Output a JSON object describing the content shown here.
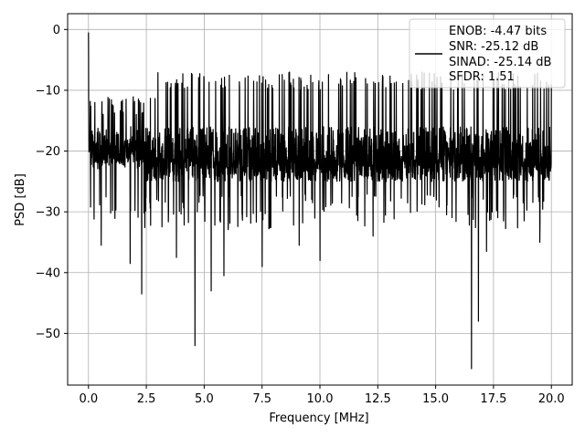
{
  "chart_data": {
    "type": "line",
    "title": "",
    "xlabel": "Frequency [MHz]",
    "ylabel": "PSD [dB]",
    "xlim": [
      -0.9,
      20.9
    ],
    "ylim": [
      -58.5,
      2.6
    ],
    "xticks": [
      0.0,
      2.5,
      5.0,
      7.5,
      10.0,
      12.5,
      15.0,
      17.5,
      20.0
    ],
    "xtick_labels": [
      "0.0",
      "2.5",
      "5.0",
      "7.5",
      "10.0",
      "12.5",
      "15.0",
      "17.5",
      "20.0"
    ],
    "yticks": [
      0,
      -10,
      -20,
      -30,
      -40,
      -50
    ],
    "ytick_labels": [
      "0",
      "−10",
      "−20",
      "−30",
      "−40",
      "−50"
    ],
    "grid": true,
    "legend_position": "top-right",
    "legend_lines": [
      "ENOB: -4.47 bits",
      "SNR: -25.12 dB",
      "SINAD: -25.14 dB",
      "SFDR: 1.51"
    ],
    "series": [
      {
        "color": "#000000",
        "description_values": {
          "x_range": [
            0.0,
            20.0
          ],
          "typical_band_db": [
            -25,
            -9
          ],
          "dc_peak_db": -0.5,
          "notable_dips": [
            {
              "x": 0.55,
              "y": -35.5
            },
            {
              "x": 1.8,
              "y": -38.5
            },
            {
              "x": 2.3,
              "y": -43.5
            },
            {
              "x": 3.8,
              "y": -37.5
            },
            {
              "x": 4.6,
              "y": -52.0
            },
            {
              "x": 5.3,
              "y": -43.0
            },
            {
              "x": 5.85,
              "y": -40.5
            },
            {
              "x": 7.5,
              "y": -39.0
            },
            {
              "x": 9.1,
              "y": -35.5
            },
            {
              "x": 10.0,
              "y": -38.0
            },
            {
              "x": 12.3,
              "y": -34.0
            },
            {
              "x": 16.55,
              "y": -55.8
            },
            {
              "x": 16.85,
              "y": -48.0
            },
            {
              "x": 17.2,
              "y": -36.5
            },
            {
              "x": 19.5,
              "y": -35.0
            }
          ]
        }
      }
    ],
    "colors": {
      "line": "#000000",
      "grid": "#b0b0b0",
      "axes": "#000000"
    }
  }
}
